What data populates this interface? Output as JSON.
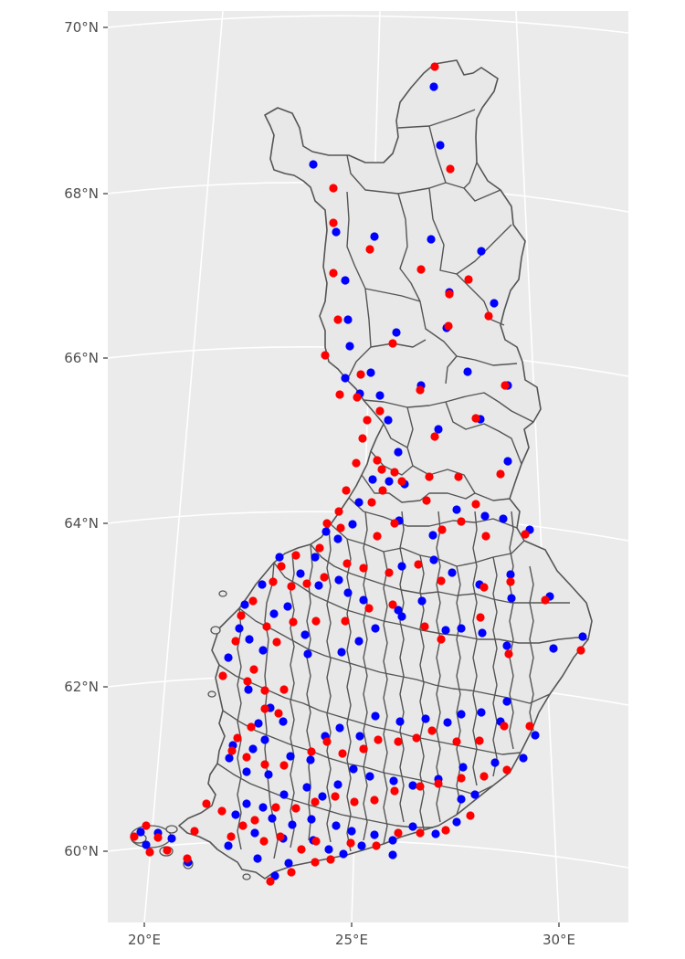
{
  "map": {
    "lat_labels": [
      "70°N",
      "68°N",
      "66°N",
      "64°N",
      "62°N",
      "60°N"
    ],
    "lon_labels": [
      "20°E",
      "25°E",
      "30°E"
    ],
    "colors": {
      "panel": "#ebebeb",
      "grid": "#ffffff",
      "land": "#e8e8e8",
      "border": "#555555",
      "series_a": "#0000ff",
      "series_b": "#ff0000"
    },
    "series": [
      {
        "color": "#0000ff"
      },
      {
        "color": "#ff0000"
      }
    ]
  }
}
